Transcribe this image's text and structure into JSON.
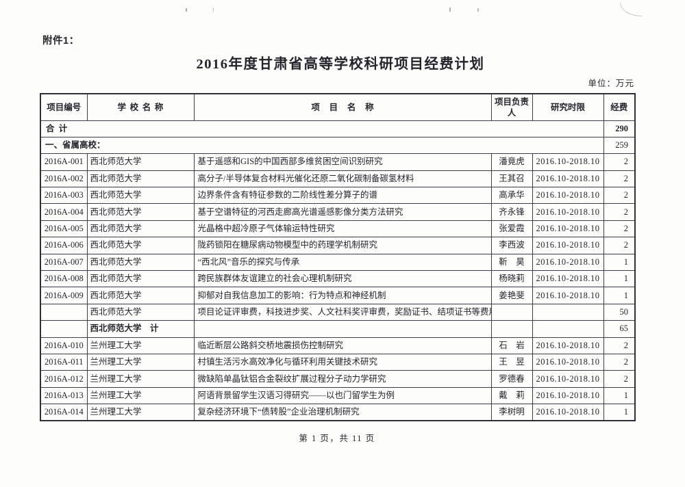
{
  "page": {
    "attachment_label": "附件1：",
    "title": "2016年度甘肃省高等学校科研项目经费计划",
    "unit_note": "单位：万元",
    "footer": "第 1 页，共 11 页"
  },
  "table": {
    "headers": {
      "code": "项目编号",
      "school": "学校名称",
      "project": "项目名称",
      "leader": "项目负责人",
      "period": "研究时限",
      "fund": "经费"
    },
    "total_row": {
      "label": "合计",
      "fund": "290"
    },
    "section_row": {
      "label": "一、省属高校：",
      "fund": "259"
    },
    "rows": [
      {
        "code": "2016A-001",
        "school": "西北师范大学",
        "project": "基于遥感和GIS的中国西部多维贫困空间识别研究",
        "leader": "潘竟虎",
        "period": "2016.10-2018.10",
        "fund": "2"
      },
      {
        "code": "2016A-002",
        "school": "西北师范大学",
        "project": "高分子/半导体复合材料光催化还原二氧化碳制备碳氢材料",
        "leader": "王其召",
        "period": "2016.10-2018.10",
        "fund": "2"
      },
      {
        "code": "2016A-003",
        "school": "西北师范大学",
        "project": "边界条件含有特征参数的二阶线性差分算子的谱",
        "leader": "高承华",
        "period": "2016.10-2018.10",
        "fund": "2"
      },
      {
        "code": "2016A-004",
        "school": "西北师范大学",
        "project": "基于空谱特征的河西走廊高光谱遥感影像分类方法研究",
        "leader": "齐永锋",
        "period": "2016.10-2018.10",
        "fund": "2"
      },
      {
        "code": "2016A-005",
        "school": "西北师范大学",
        "project": "光晶格中超冷原子气体输运特性研究",
        "leader": "张爱霞",
        "period": "2016.10-2018.10",
        "fund": "2"
      },
      {
        "code": "2016A-006",
        "school": "西北师范大学",
        "project": "陇药锁阳在糖尿病动物模型中的药理学机制研究",
        "leader": "李西波",
        "period": "2016.10-2018.10",
        "fund": "2"
      },
      {
        "code": "2016A-007",
        "school": "西北师范大学",
        "project": "“西北风”音乐的探究与传承",
        "leader": "靳　昊",
        "period": "2016.10-2018.10",
        "fund": "1"
      },
      {
        "code": "2016A-008",
        "school": "西北师范大学",
        "project": "跨民族群体友谊建立的社会心理机制研究",
        "leader": "杨晓莉",
        "period": "2016.10-2018.10",
        "fund": "1"
      },
      {
        "code": "2016A-009",
        "school": "西北师范大学",
        "project": "抑郁对自我信息加工的影响：行为特点和神经机制",
        "leader": "姜艳斐",
        "period": "2016.10-2018.10",
        "fund": "1"
      },
      {
        "code": "",
        "school": "西北师范大学",
        "project": "项目论证评审费，科技进步奖、人文社科奖评审费，奖励证书、结项证书等费用",
        "leader": "",
        "period": "",
        "fund": "50"
      },
      {
        "code": "",
        "school": "西北师范大学　计",
        "project": "",
        "leader": "",
        "period": "",
        "fund": "65"
      },
      {
        "code": "2016A-010",
        "school": "兰州理工大学",
        "project": "临近断层公路斜交桥地震损伤控制研究",
        "leader": "石　岩",
        "period": "2016.10-2018.10",
        "fund": "2"
      },
      {
        "code": "2016A-011",
        "school": "兰州理工大学",
        "project": "村镇生活污水高效净化与循环利用关键技术研究",
        "leader": "王　昱",
        "period": "2016.10-2018.10",
        "fund": "2"
      },
      {
        "code": "2016A-012",
        "school": "兰州理工大学",
        "project": "微缺陷单晶钛铝合金裂纹扩展过程分子动力学研究",
        "leader": "罗德春",
        "period": "2016.10-2018.10",
        "fund": "2"
      },
      {
        "code": "2016A-013",
        "school": "兰州理工大学",
        "project": "阿语背景留学生汉语习得研究——以也门留学生为例",
        "leader": "戴　莉",
        "period": "2016.10-2018.10",
        "fund": "1"
      },
      {
        "code": "2016A-014",
        "school": "兰州理工大学",
        "project": "复杂经济环境下“债转股”企业治理机制研究",
        "leader": "李树明",
        "period": "2016.10-2018.10",
        "fund": "1"
      }
    ]
  }
}
